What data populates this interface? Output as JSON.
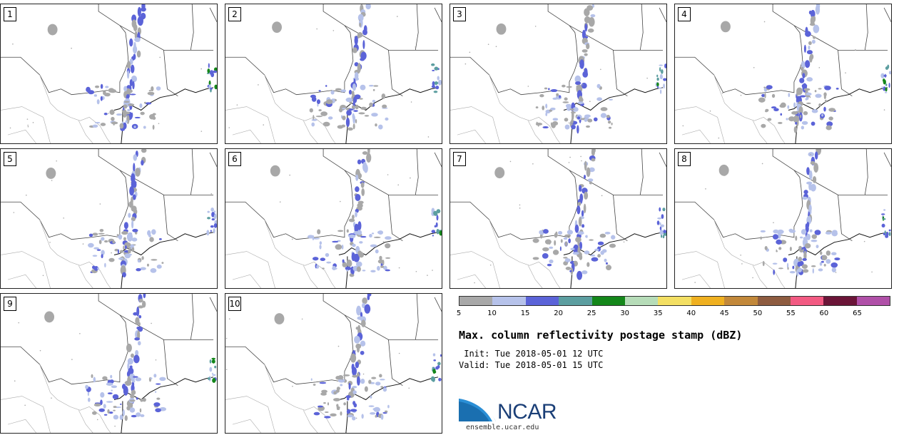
{
  "panels": [
    {
      "label": "1"
    },
    {
      "label": "2"
    },
    {
      "label": "3"
    },
    {
      "label": "4"
    },
    {
      "label": "5"
    },
    {
      "label": "6"
    },
    {
      "label": "7"
    },
    {
      "label": "8"
    },
    {
      "label": "9"
    },
    {
      "label": "10"
    }
  ],
  "colorbar": {
    "colors": [
      "#a8a8a8",
      "#b6c2ea",
      "#5b63d8",
      "#5c9ea0",
      "#14871a",
      "#b6dcb8",
      "#f3df63",
      "#efb020",
      "#c2883a",
      "#8e5c40",
      "#f25a82",
      "#6b1538",
      "#b050a8"
    ],
    "tick_labels": [
      "5",
      "10",
      "15",
      "20",
      "25",
      "30",
      "35",
      "40",
      "45",
      "50",
      "55",
      "60",
      "65"
    ]
  },
  "title": "Max. column reflectivity postage stamp (dBZ)",
  "init": " Init: Tue 2018-05-01 12 UTC",
  "valid": "Valid: Tue 2018-05-01 15 UTC",
  "logo": {
    "name": "NCAR",
    "url": "ensemble.ucar.edu"
  }
}
